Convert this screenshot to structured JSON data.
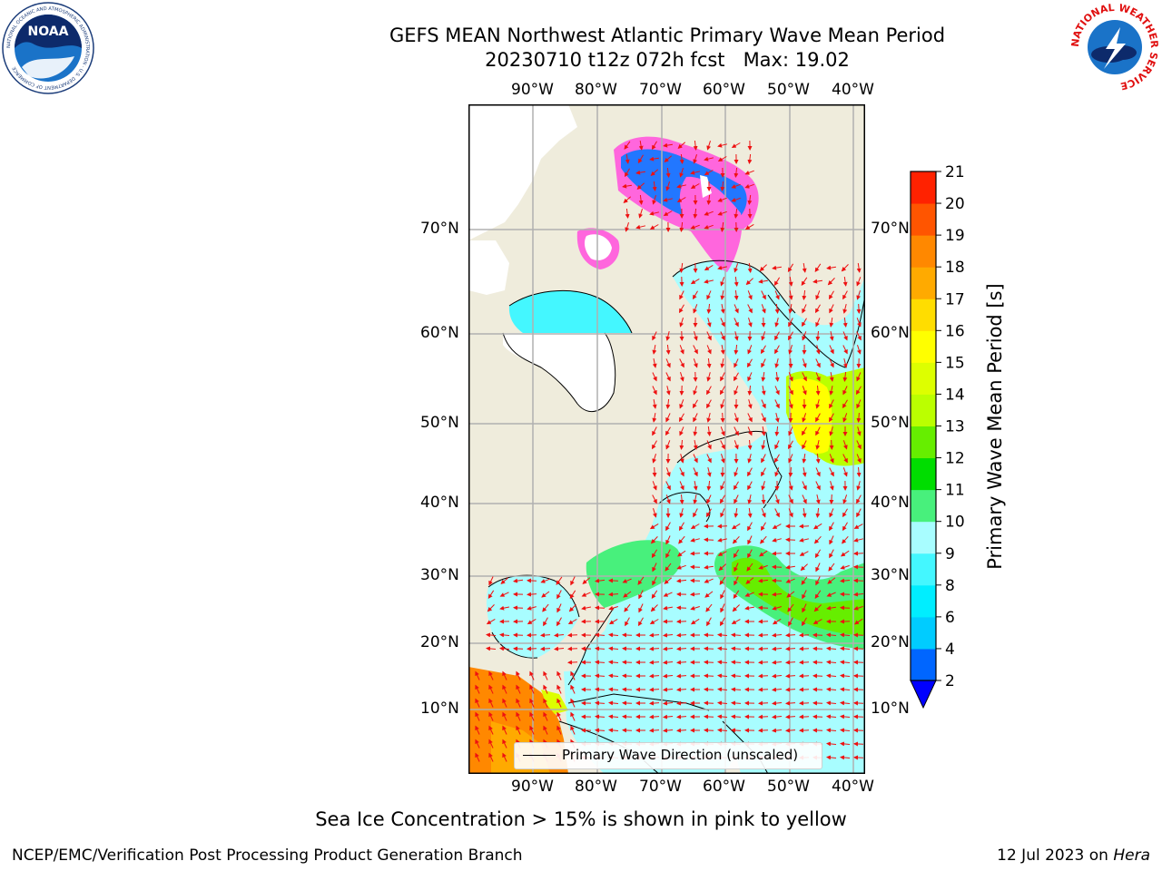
{
  "header": {
    "title_line1": "GEFS MEAN Northwest Atlantic Primary Wave Mean Period",
    "title_line2": "20230710 t12z 072h fcst   Max: 19.02"
  },
  "logos": {
    "noaa_text": "NOAA",
    "noaa_ring_text": "NATIONAL OCEANIC AND ATMOSPHERIC ADMINISTRATION · U.S. DEPARTMENT OF COMMERCE",
    "nws_ring_text": "NATIONAL WEATHER SERVICE"
  },
  "map": {
    "lon_labels": [
      "90°W",
      "80°W",
      "70°W",
      "60°W",
      "50°W",
      "40°W"
    ],
    "lat_labels": [
      "70°N",
      "60°N",
      "50°N",
      "40°N",
      "30°N",
      "20°N",
      "10°N"
    ]
  },
  "legend": {
    "label": "Primary Wave Direction (unscaled)"
  },
  "colorbar": {
    "label": "Primary Wave Mean Period [s]",
    "ticks": [
      "2",
      "4",
      "6",
      "8",
      "9",
      "10",
      "11",
      "12",
      "13",
      "14",
      "15",
      "16",
      "17",
      "18",
      "19",
      "20",
      "21"
    ],
    "colors": [
      "#0066ff",
      "#00ccff",
      "#00eeff",
      "#44f7ff",
      "#a8fdff",
      "#48f07c",
      "#00dd00",
      "#66ee00",
      "#bbff00",
      "#ddff00",
      "#ffff00",
      "#ffdd00",
      "#ffaa00",
      "#ff8800",
      "#ff5500",
      "#ff2200"
    ],
    "extend_low_color": "#0000ff"
  },
  "footer": {
    "note": "Sea Ice Concentration > 15% is shown in pink to yellow",
    "credit_left": "NCEP/EMC/Verification Post Processing Product Generation Branch",
    "date": "12 Jul 2023 on ",
    "machine": "Hera"
  }
}
